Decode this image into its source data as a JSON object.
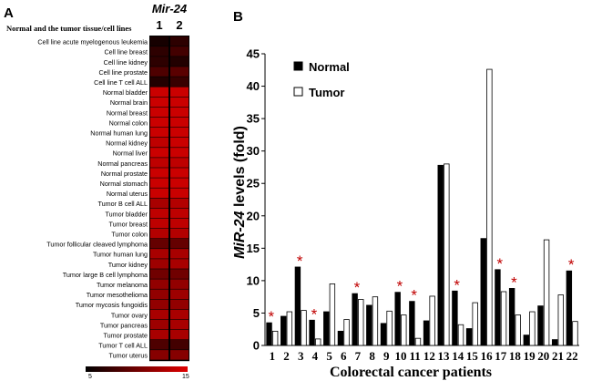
{
  "panel_a": {
    "letter": "A",
    "column_title": "Mir-24",
    "header_label": "Normal and the tumor tissue/cell lines",
    "col_labels": [
      "1",
      "2"
    ],
    "colorbar_min": "5",
    "colorbar_max": "15"
  },
  "panel_b": {
    "letter": "B"
  },
  "colors": {
    "normal": "#000000",
    "tumor": "#ffffff",
    "asterisk": "#c00000",
    "heat_low": "#000000",
    "heat_high": "#e00000"
  },
  "chart_data": [
    {
      "type": "heatmap",
      "title": "Mir-24",
      "columns": [
        "1",
        "2"
      ],
      "scale": [
        5,
        15
      ],
      "rows": [
        {
          "label": "Cell line acute myelogenous leukemia",
          "values": [
            6,
            7
          ]
        },
        {
          "label": "Cell line breast",
          "values": [
            7,
            8
          ]
        },
        {
          "label": "Cell line kidney",
          "values": [
            7,
            6.5
          ]
        },
        {
          "label": "Cell line prostate",
          "values": [
            8.5,
            9
          ]
        },
        {
          "label": "Cell line T cell ALL",
          "values": [
            6.5,
            7.5
          ]
        },
        {
          "label": "Normal bladder",
          "values": [
            14,
            14
          ]
        },
        {
          "label": "Normal brain",
          "values": [
            14,
            14
          ]
        },
        {
          "label": "Normal breast",
          "values": [
            14,
            14
          ]
        },
        {
          "label": "Normal colon",
          "values": [
            14,
            14
          ]
        },
        {
          "label": "Normal human lung",
          "values": [
            14,
            14
          ]
        },
        {
          "label": "Normal kidney",
          "values": [
            13.5,
            14
          ]
        },
        {
          "label": "Normal liver",
          "values": [
            14,
            14
          ]
        },
        {
          "label": "Normal pancreas",
          "values": [
            13.5,
            13.5
          ]
        },
        {
          "label": "Normal prostate",
          "values": [
            14,
            14
          ]
        },
        {
          "label": "Normal stomach",
          "values": [
            14,
            14
          ]
        },
        {
          "label": "Normal uterus",
          "values": [
            14,
            14
          ]
        },
        {
          "label": "Tumor B cell ALL",
          "values": [
            12.5,
            13
          ]
        },
        {
          "label": "Tumor bladder",
          "values": [
            13.5,
            13.5
          ]
        },
        {
          "label": "Tumor breast",
          "values": [
            13.5,
            13.5
          ]
        },
        {
          "label": "Tumor colon",
          "values": [
            13,
            13
          ]
        },
        {
          "label": "Tumor follicular cleaved lymphoma",
          "values": [
            9.5,
            9.5
          ]
        },
        {
          "label": "Tumor human lung",
          "values": [
            12.5,
            12.5
          ]
        },
        {
          "label": "Tumor kidney",
          "values": [
            12,
            12.5
          ]
        },
        {
          "label": "Tumor large B cell lymphoma",
          "values": [
            10,
            10
          ]
        },
        {
          "label": "Tumor melanoma",
          "values": [
            11.5,
            11.5
          ]
        },
        {
          "label": "Tumor mesothelioma",
          "values": [
            11.5,
            12
          ]
        },
        {
          "label": "Tumor mycosis fungoidis",
          "values": [
            11.5,
            11.5
          ]
        },
        {
          "label": "Tumor ovary",
          "values": [
            12.5,
            12.5
          ]
        },
        {
          "label": "Tumor pancreas",
          "values": [
            12,
            12.5
          ]
        },
        {
          "label": "Tumor prostate",
          "values": [
            12.5,
            12.5
          ]
        },
        {
          "label": "Tumor T cell ALL",
          "values": [
            8.5,
            8
          ]
        },
        {
          "label": "Tumor uterus",
          "values": [
            11,
            11
          ]
        }
      ]
    },
    {
      "type": "bar",
      "xlabel": "Colorectal cancer patients",
      "ylabel_italic": "MiR-24",
      "ylabel_rest": " levels (fold)",
      "categories": [
        "1",
        "2",
        "3",
        "4",
        "5",
        "6",
        "7",
        "8",
        "9",
        "10",
        "11",
        "12",
        "13",
        "14",
        "15",
        "16",
        "17",
        "18",
        "19",
        "20",
        "21",
        "22"
      ],
      "ylim": [
        0,
        45
      ],
      "yticks": [
        0,
        5,
        10,
        15,
        20,
        25,
        30,
        35,
        40,
        45
      ],
      "legend_position": "top-left",
      "series": [
        {
          "name": "Normal",
          "values": [
            3.5,
            4.5,
            12.1,
            3.9,
            5.2,
            2.2,
            8.0,
            6.2,
            3.4,
            8.2,
            6.8,
            3.8,
            27.8,
            8.4,
            2.6,
            16.5,
            11.7,
            8.8,
            1.6,
            6.1,
            0.9,
            11.5
          ]
        },
        {
          "name": "Tumor",
          "values": [
            2.2,
            5.2,
            5.4,
            1.0,
            9.5,
            4.0,
            7.1,
            7.5,
            5.3,
            4.7,
            1.1,
            7.6,
            28.0,
            3.2,
            6.6,
            42.6,
            8.3,
            4.7,
            5.2,
            16.3,
            7.8,
            3.7
          ]
        }
      ],
      "significant": [
        "1",
        "3",
        "4",
        "7",
        "10",
        "11",
        "14",
        "17",
        "18",
        "22"
      ],
      "significance_marker": "*"
    }
  ]
}
